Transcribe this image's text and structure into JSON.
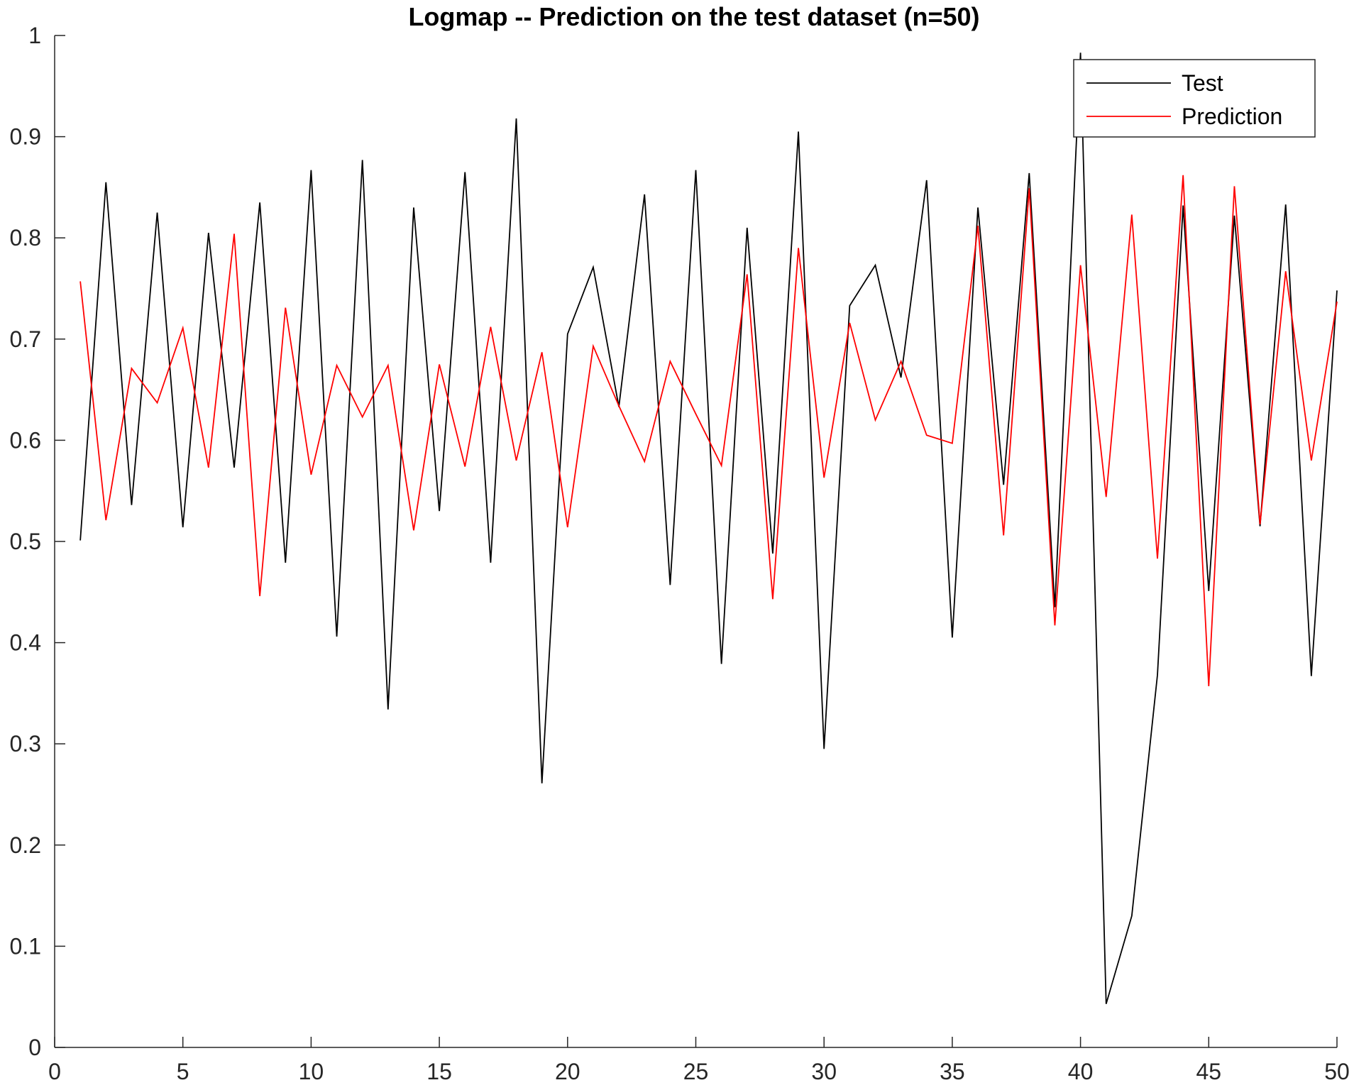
{
  "chart_data": {
    "type": "line",
    "title": "Logmap -- Prediction on the test dataset (n=50)",
    "xlabel": "",
    "ylabel": "",
    "xlim": [
      0,
      50
    ],
    "ylim": [
      0,
      1
    ],
    "xticks": [
      0,
      5,
      10,
      15,
      20,
      25,
      30,
      35,
      40,
      45,
      50
    ],
    "yticks": [
      0,
      0.1,
      0.2,
      0.3,
      0.4,
      0.5,
      0.6,
      0.7,
      0.8,
      0.9,
      1
    ],
    "xtick_labels": [
      "0",
      "5",
      "10",
      "15",
      "20",
      "25",
      "30",
      "35",
      "40",
      "45",
      "50"
    ],
    "ytick_labels": [
      "0",
      "0.1",
      "0.2",
      "0.3",
      "0.4",
      "0.5",
      "0.6",
      "0.7",
      "0.8",
      "0.9",
      "1"
    ],
    "grid": false,
    "legend_position": "top-right",
    "x": [
      1,
      2,
      3,
      4,
      5,
      6,
      7,
      8,
      9,
      10,
      11,
      12,
      13,
      14,
      15,
      16,
      17,
      18,
      19,
      20,
      21,
      22,
      23,
      24,
      25,
      26,
      27,
      28,
      29,
      30,
      31,
      32,
      33,
      34,
      35,
      36,
      37,
      38,
      39,
      40,
      41,
      42,
      43,
      44,
      45,
      46,
      47,
      48,
      49,
      50
    ],
    "series": [
      {
        "name": "Test",
        "color": "#000000",
        "values": [
          0.501,
          0.855,
          0.536,
          0.825,
          0.514,
          0.805,
          0.573,
          0.835,
          0.479,
          0.867,
          0.406,
          0.877,
          0.334,
          0.83,
          0.53,
          0.865,
          0.479,
          0.918,
          0.261,
          0.705,
          0.771,
          0.633,
          0.843,
          0.457,
          0.867,
          0.379,
          0.81,
          0.488,
          0.905,
          0.295,
          0.733,
          0.773,
          0.662,
          0.857,
          0.405,
          0.83,
          0.556,
          0.864,
          0.435,
          0.983,
          0.043,
          0.13,
          0.368,
          0.832,
          0.451,
          0.822,
          0.515,
          0.833,
          0.367,
          0.748
        ]
      },
      {
        "name": "Prediction",
        "color": "#ff0000",
        "values": [
          0.757,
          0.521,
          0.671,
          0.637,
          0.711,
          0.573,
          0.804,
          0.446,
          0.731,
          0.566,
          0.674,
          0.623,
          0.674,
          0.511,
          0.675,
          0.574,
          0.712,
          0.58,
          0.687,
          0.514,
          0.693,
          0.634,
          0.579,
          0.678,
          0.626,
          0.575,
          0.764,
          0.443,
          0.79,
          0.563,
          0.716,
          0.62,
          0.678,
          0.605,
          0.597,
          0.812,
          0.506,
          0.849,
          0.417,
          0.773,
          0.544,
          0.823,
          0.483,
          0.862,
          0.357,
          0.851,
          0.517,
          0.767,
          0.58,
          0.737
        ]
      }
    ]
  }
}
